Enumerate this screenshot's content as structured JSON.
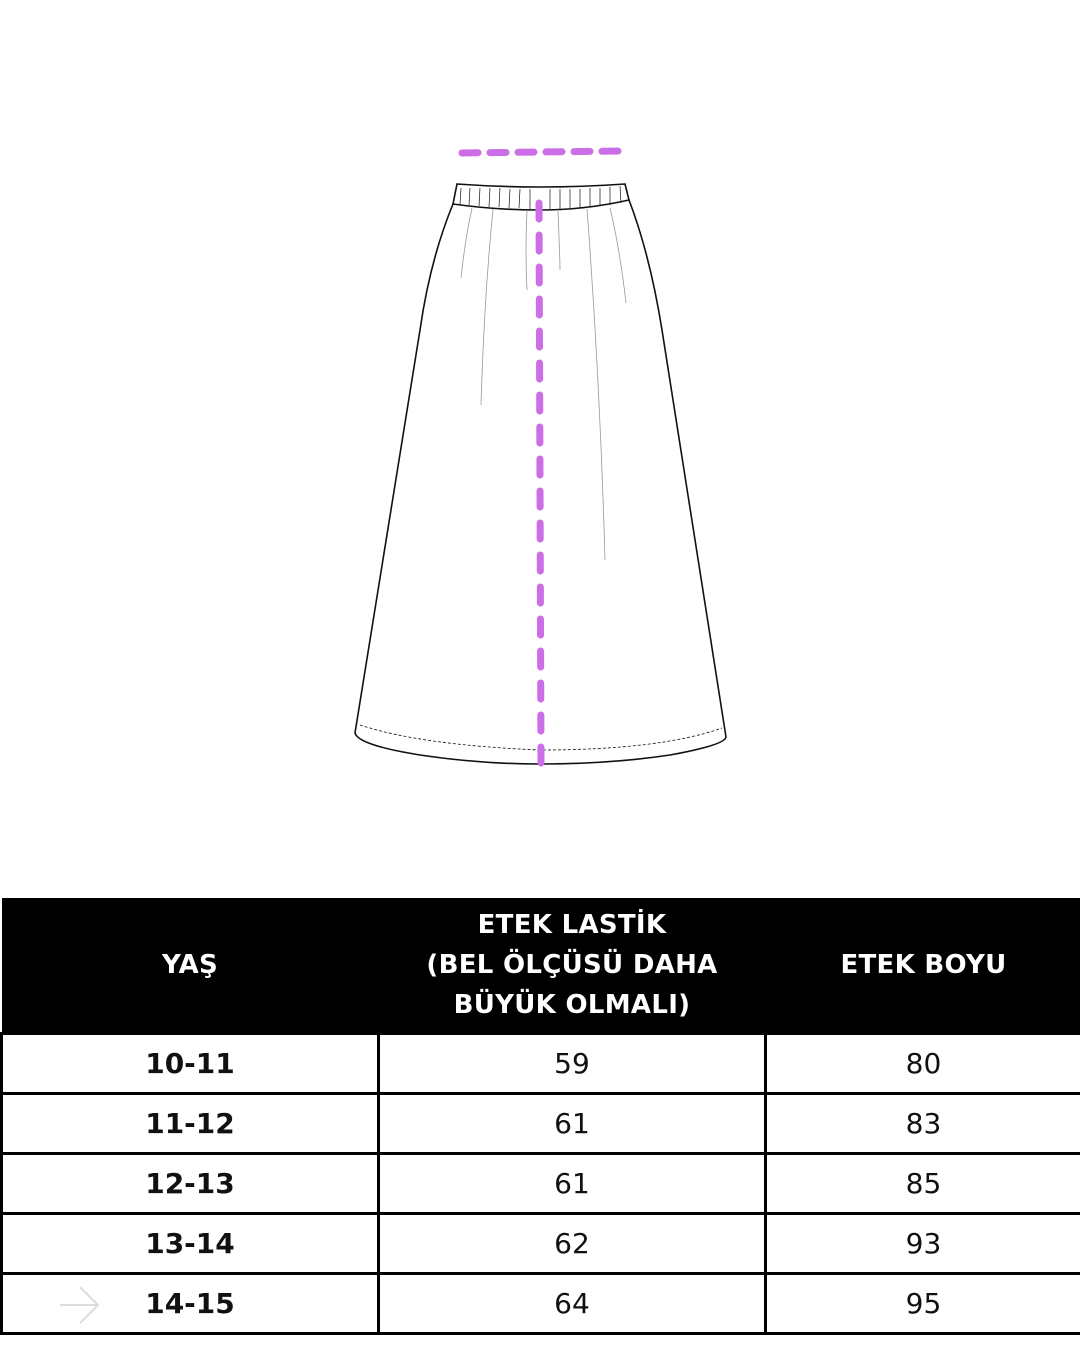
{
  "colors": {
    "measure_line": "#cc6ee6",
    "header_bg": "#000000",
    "header_text": "#ffffff"
  },
  "illustration": {
    "name": "skirt-technical-drawing",
    "icon": "skirt-icon"
  },
  "table": {
    "headers": [
      "YAŞ",
      "ETEK LASTİK\n(BEL ÖLÇÜSÜ DAHA\nBÜYÜK OLMALI)",
      "ETEK BOYU"
    ],
    "header_lines": {
      "col2": [
        "ETEK LASTİK",
        "(BEL ÖLÇÜSÜ DAHA",
        "BÜYÜK OLMALI)"
      ]
    },
    "rows": [
      {
        "age": "10-11",
        "waist": "59",
        "length": "80"
      },
      {
        "age": "11-12",
        "waist": "61",
        "length": "83"
      },
      {
        "age": "12-13",
        "waist": "61",
        "length": "85"
      },
      {
        "age": "13-14",
        "waist": "62",
        "length": "93"
      },
      {
        "age": "14-15",
        "waist": "64",
        "length": "95"
      }
    ]
  },
  "overlay": {
    "icon": "arrow-right-icon"
  }
}
